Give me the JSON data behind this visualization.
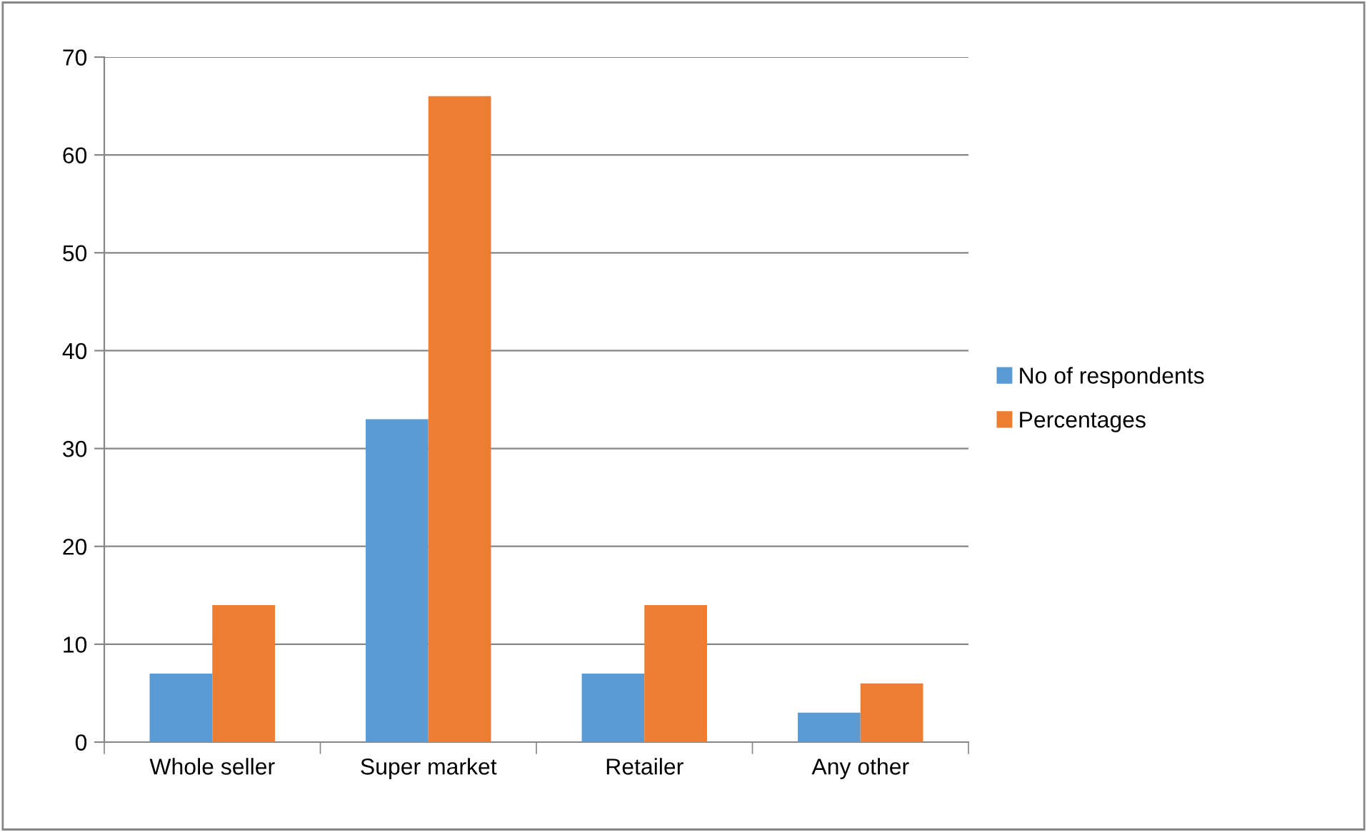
{
  "chart_data": {
    "type": "bar",
    "categories": [
      "Whole seller",
      "Super market",
      "Retailer",
      "Any other"
    ],
    "series": [
      {
        "name": "No of respondents",
        "color": "#5b9bd5",
        "values": [
          7,
          33,
          7,
          3
        ]
      },
      {
        "name": "Percentages",
        "color": "#ed7d31",
        "values": [
          14,
          66,
          14,
          6
        ]
      }
    ],
    "ylim": [
      0,
      70
    ],
    "yticks": [
      0,
      10,
      20,
      30,
      40,
      50,
      60,
      70
    ],
    "grid": "y",
    "legend": "right"
  }
}
